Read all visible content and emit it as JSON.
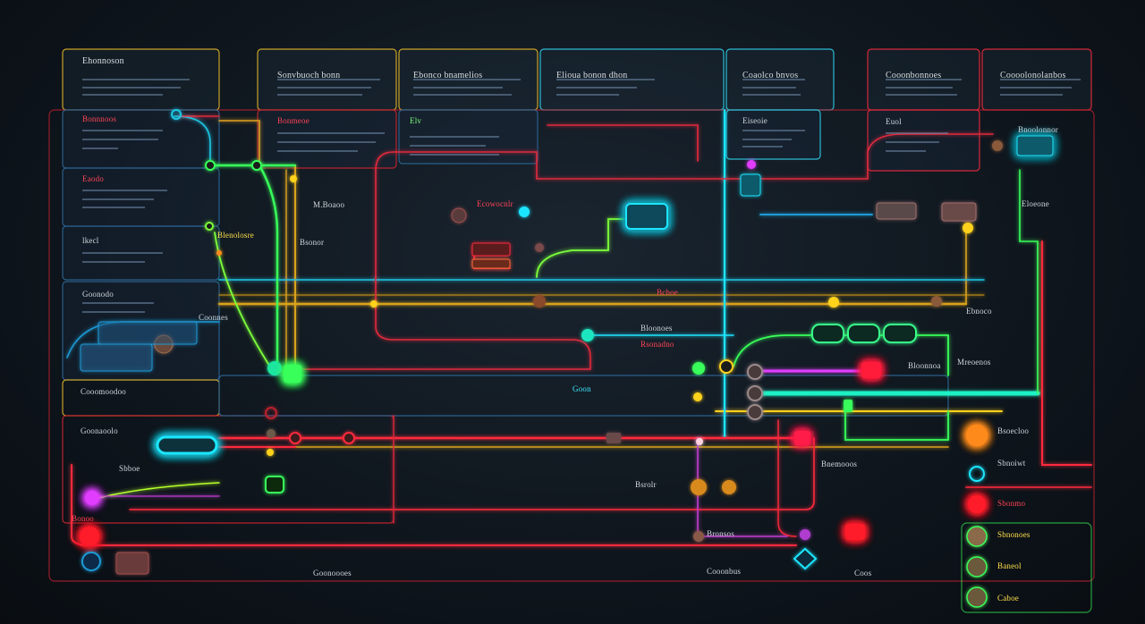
{
  "diagram": {
    "panels": [
      {
        "title": "Ehonnoson",
        "color": "#c9a228"
      },
      {
        "title": "Sonvbuoch bonn",
        "color": "#c9a228"
      },
      {
        "title": "Ebonco bnamelios",
        "color": "#c9a228"
      },
      {
        "title": "Elioua bonon dhon",
        "color": "#2bbbd4"
      },
      {
        "title": "Coaolco bnvos",
        "color": "#2bbbd4"
      },
      {
        "title": "Cooonbonnoes",
        "color": "#d6283a"
      },
      {
        "title": "Coooolonolanbos",
        "color": "#d6283a"
      }
    ],
    "labels": {
      "l_bonnnoos": "Bonnnoos",
      "l_eaodo": "Eaodo",
      "l_lkecl": "lkecl",
      "l_goonodo": "Goonodo",
      "l_elv": "Elv",
      "l_bonmeoe": "Bonmeoe",
      "l_eiseoie": "Eiseoie",
      "l_euol": "Euol",
      "l_mbaeoo": "M.Boaoo",
      "l_bsonor": "Bsonor",
      "l_coonnes": "Coonnes",
      "l_goonaoolo": "Goonaoolo",
      "l_cooomoodoo": "Cooomoodoo",
      "l_sbboe": "Sbboe",
      "l_bonoo": "Bonoo",
      "l_ecowocnlr": "Ecowocnlr",
      "l_bloonoes": "Bloonoes",
      "l_rsonadno": "Rsonadno",
      "l_bloonnoa": "Bloonnoa",
      "l_mreoenos": "Mreoenos",
      "l_ebnoco": "Ebnoco",
      "l_eloeone": "Eloeone",
      "l_bnemooos": "Bnemooos",
      "l_bsrolr": "Bsrolr",
      "l_bronsos": "Bronsos",
      "l_cooonbus": "Cooonbus",
      "l_sbnoiwt": "Sbnoiwt",
      "l_bsoecloo": "Bsoecloo",
      "l_sbonmo": "Sbonmo",
      "l_sbnonoes": "Sbnonoes",
      "l_baneol": "Baneol",
      "l_caboe": "Caboe",
      "l_goon": "Goon",
      "l_blenolosre": "Blenolosre",
      "l_bnoolonnor": "Bnoolonnor",
      "l_goonoooes": "Goonoooes",
      "l_bcboe": "Bcboe",
      "l_coos": "Coos"
    },
    "colors": {
      "red": "#ff2a3c",
      "green": "#39ff5a",
      "cyan": "#1ee6ff",
      "yellow": "#ffd21e",
      "orange": "#ff8a1e",
      "magenta": "#e03cff",
      "lime": "#b6ff2a",
      "background": "#0c1218"
    }
  }
}
